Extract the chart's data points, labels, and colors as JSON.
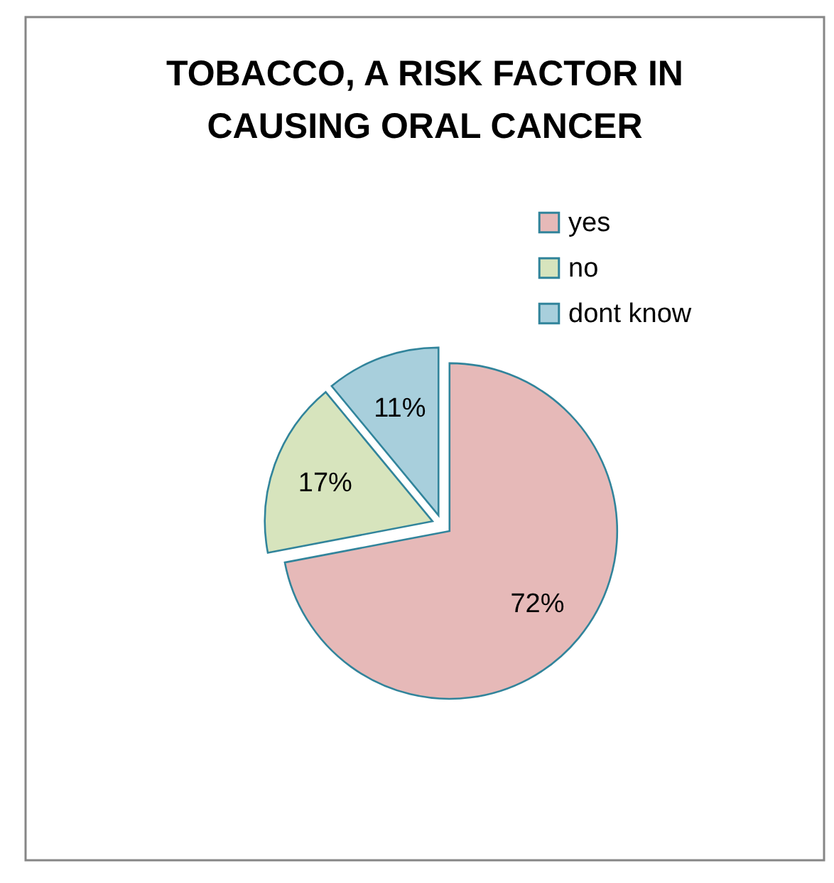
{
  "chart_data": {
    "type": "pie",
    "title": "TOBACCO, A RISK FACTOR IN CAUSING ORAL CANCER",
    "categories": [
      "yes",
      "no",
      "dont know"
    ],
    "values": [
      72,
      17,
      11
    ],
    "colors": [
      "#e6b9b8",
      "#d7e4bd",
      "#a8cfdc"
    ],
    "value_labels": [
      "72%",
      "17%",
      "11%"
    ],
    "legend": "top right"
  }
}
